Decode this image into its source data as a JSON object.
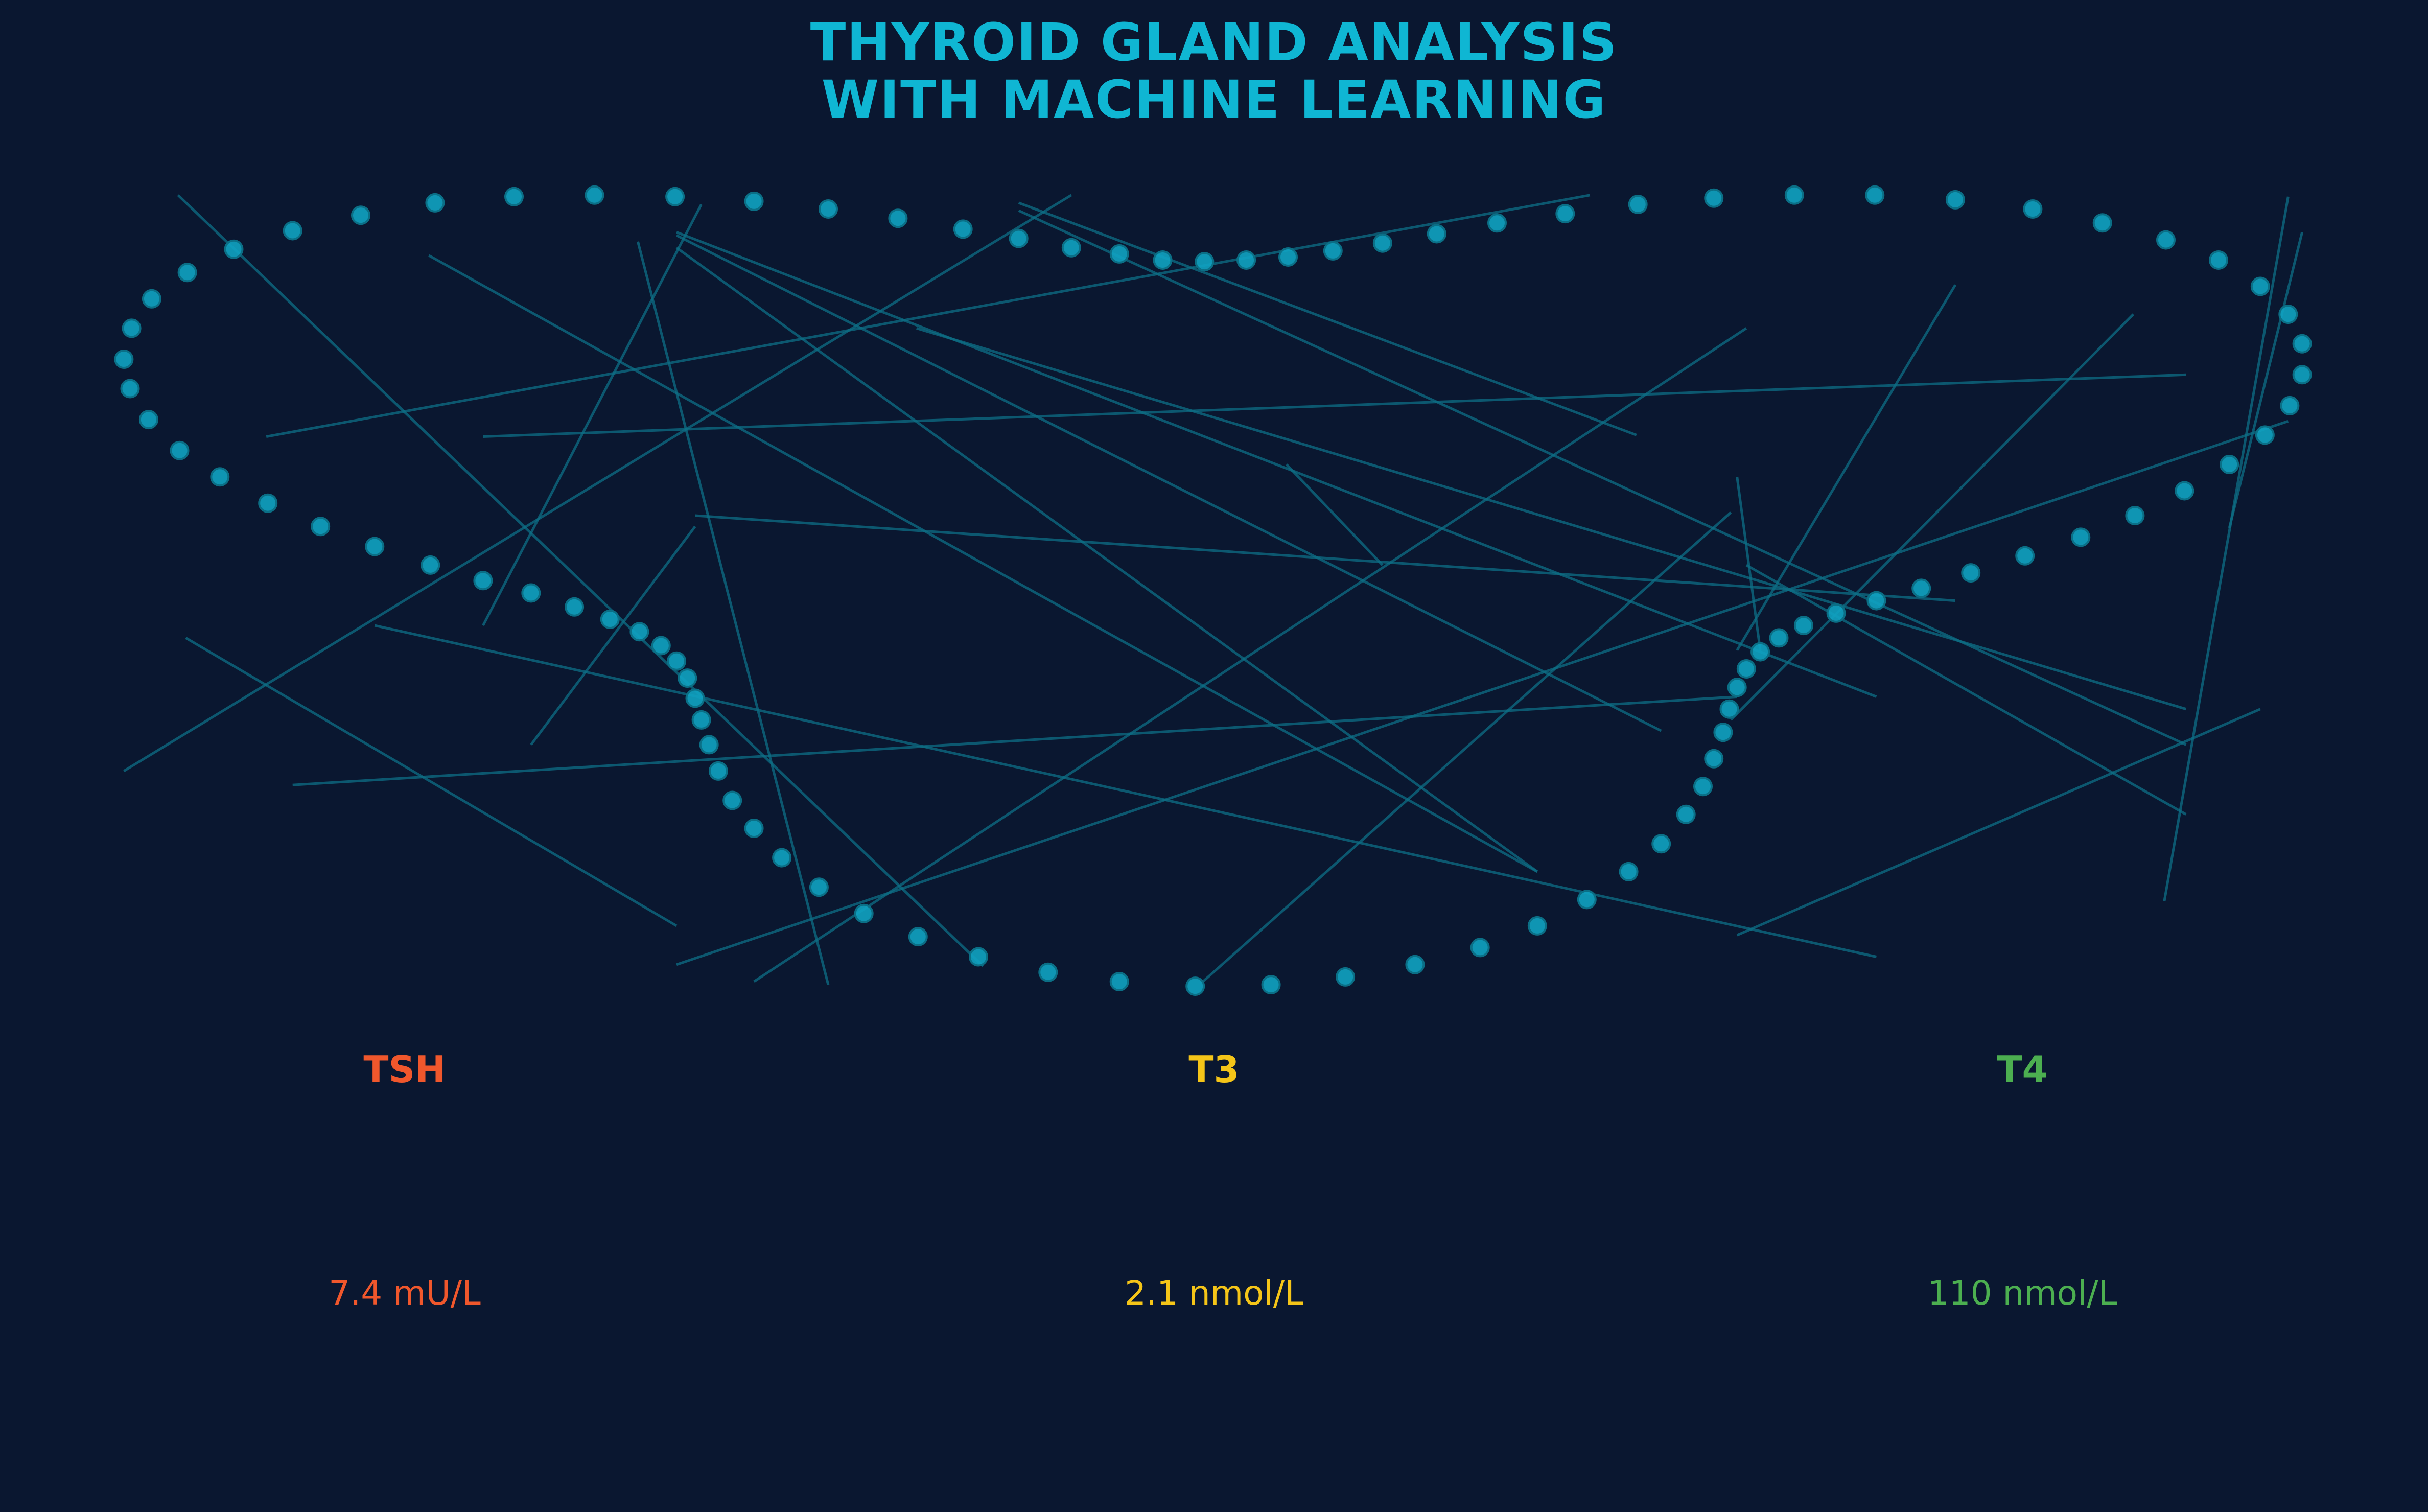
{
  "title": {
    "line1": "THYROID GLAND ANALYSIS",
    "line2": "WITH MACHINE LEARNING"
  },
  "markers": [
    {
      "label": "TSH",
      "value": "7.4 mU/L",
      "color": "#f0572c"
    },
    {
      "label": "T3",
      "value": "2.1 nmol/L",
      "color": "#f5c518"
    },
    {
      "label": "T4",
      "value": "110 nmol/L",
      "color": "#4caf50"
    }
  ],
  "colors": {
    "background": "#0a1730",
    "accent": "#0fb6d3",
    "dot": "#0fa3c2",
    "network_line": "#0d6f86"
  },
  "illustration": {
    "subject": "thyroid-outline",
    "style": "dotted-outline-with-network-lines"
  }
}
